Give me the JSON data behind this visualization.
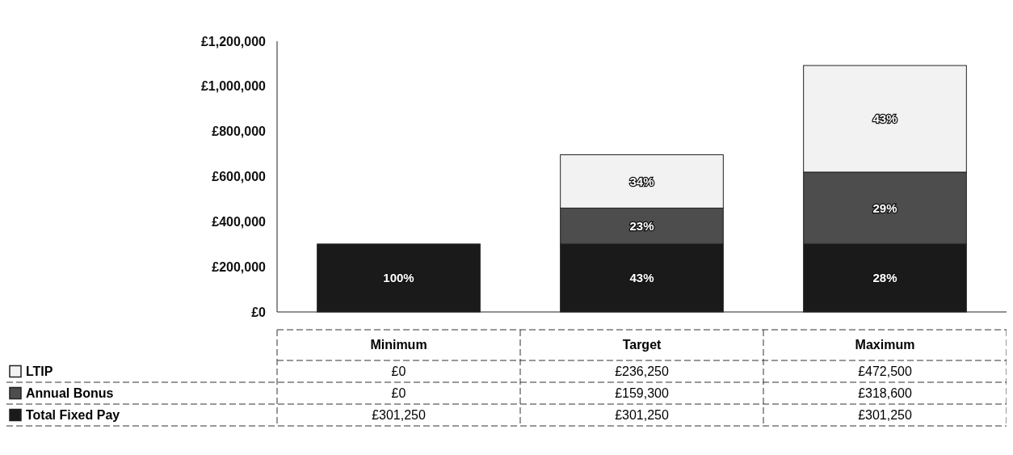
{
  "chart_data": {
    "type": "bar",
    "stacked": true,
    "categories": [
      "Minimum",
      "Target",
      "Maximum"
    ],
    "series": [
      {
        "name": "Total Fixed Pay",
        "color": "#1a1a1a",
        "values": [
          301250,
          301250,
          301250
        ],
        "value_labels": [
          "£301,250",
          "£301,250",
          "£301,250"
        ]
      },
      {
        "name": "Annual Bonus",
        "color": "#4d4d4d",
        "values": [
          0,
          159300,
          318600
        ],
        "value_labels": [
          "£0",
          "£159,300",
          "£318,600"
        ]
      },
      {
        "name": "LTIP",
        "color": "#f2f2f2",
        "values": [
          0,
          236250,
          472500
        ],
        "value_labels": [
          "£0",
          "£236,250",
          "£472,500"
        ]
      }
    ],
    "ylim": [
      0,
      1200000
    ],
    "yticks": [
      {
        "value": 0,
        "label": "£0"
      },
      {
        "value": 200000,
        "label": "£200,000"
      },
      {
        "value": 400000,
        "label": "£400,000"
      },
      {
        "value": 600000,
        "label": "£600,000"
      },
      {
        "value": 800000,
        "label": "£800,000"
      },
      {
        "value": 1000000,
        "label": "£1,000,000"
      },
      {
        "value": 1200000,
        "label": "£1,200,000"
      }
    ],
    "annotations": [
      "100%",
      "43%",
      "23%",
      "34%",
      "28%",
      "29%",
      "43%"
    ],
    "legend": "bottom",
    "grid": false
  }
}
